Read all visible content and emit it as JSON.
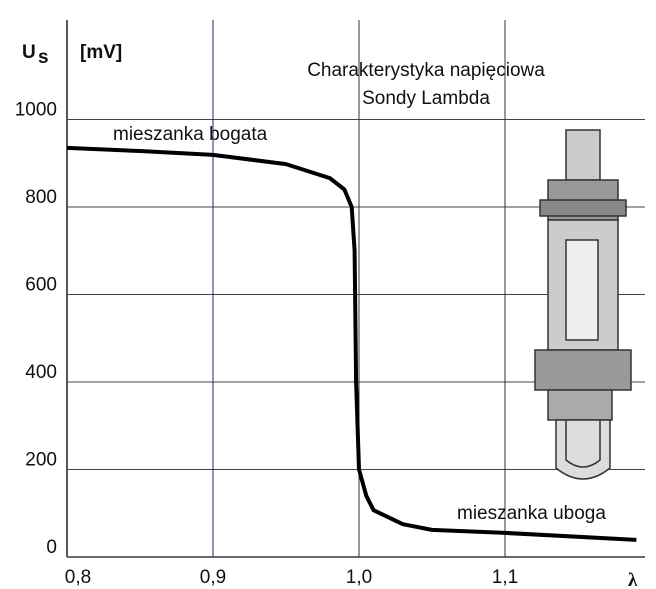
{
  "chart_data": {
    "type": "line",
    "title": [
      "Charakterystyka napięciowa",
      "Sondy Lambda"
    ],
    "y_label": "U",
    "y_label_subscript": "s",
    "y_unit": "[mV]",
    "x_label": "λ",
    "annotations": [
      "mieszanka bogata",
      "mieszanka uboga"
    ],
    "x": [
      0.8,
      0.85,
      0.9,
      0.95,
      0.98,
      0.99,
      0.995,
      0.997,
      0.998,
      1.0,
      1.005,
      1.01,
      1.03,
      1.05,
      1.1,
      1.19
    ],
    "series": [
      {
        "color": "#000000",
        "values": [
          935,
          928,
          919,
          898,
          866,
          840,
          800,
          700,
          400,
          200,
          140,
          107,
          75,
          62,
          55,
          39
        ]
      }
    ],
    "xlim": [
      0.8,
      1.2
    ],
    "ylim": [
      0,
      1200
    ],
    "xticks": [
      {
        "value": 0.8,
        "label": "0,8"
      },
      {
        "value": 0.9,
        "label": "0,9"
      },
      {
        "value": 1.0,
        "label": "1,0"
      },
      {
        "value": 1.1,
        "label": "1,1"
      }
    ],
    "yticks": [
      0,
      200,
      400,
      600,
      800,
      1000
    ],
    "grid": true
  }
}
